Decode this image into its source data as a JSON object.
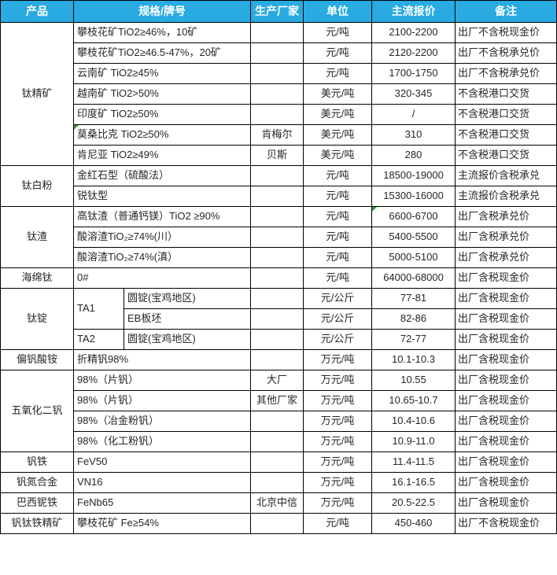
{
  "colors": {
    "header_bg": "#29aae1",
    "header_text": "#ffffff",
    "border": "#000000",
    "body_text": "#262626",
    "marker_green": "#2da02d",
    "row_bg": "#ffffff"
  },
  "chart_data": {
    "type": "table",
    "title": "",
    "columns": [
      "产品",
      "规格/牌号",
      "生产厂家",
      "单位",
      "主流报价",
      "备注"
    ],
    "sections": [
      {
        "product": "钛精矿",
        "rows": [
          {
            "spec": "攀枝花矿TiO2≥46%，10矿",
            "maker": "",
            "unit": "元/吨",
            "price": "2100-2200",
            "note": "出厂不含税现金价"
          },
          {
            "spec": "攀枝花矿TiO2≥46.5-47%，20矿",
            "maker": "",
            "unit": "元/吨",
            "price": "2120-2200",
            "note": "出厂不含税承兑价"
          },
          {
            "spec": "云南矿 TiO2≥45%",
            "maker": "",
            "unit": "元/吨",
            "price": "1700-1750",
            "note": "出厂不含税承兑价"
          },
          {
            "spec": "越南矿 TiO2>50%",
            "maker": "",
            "unit": "美元/吨",
            "price": "320-345",
            "note": "不含税港口交货"
          },
          {
            "spec": "印度矿 TiO2≥50%",
            "maker": "",
            "unit": "美元/吨",
            "price": "/",
            "note": "不含税港口交货"
          },
          {
            "spec": "莫桑比克 TiO2≥50%",
            "maker": "肯梅尔",
            "unit": "美元/吨",
            "price": "310",
            "note": "不含税港口交货",
            "spec_marker": true
          },
          {
            "spec": "肯尼亚 TiO2≥49%",
            "maker": "贝斯",
            "unit": "美元/吨",
            "price": "280",
            "note": "不含税港口交货"
          }
        ]
      },
      {
        "product": "钛白粉",
        "rows": [
          {
            "spec": "金红石型（硫酸法）",
            "maker": "",
            "unit": "元/吨",
            "price": "18500-19000",
            "note": "主流报价含税承兑"
          },
          {
            "spec": "锐钛型",
            "maker": "",
            "unit": "元/吨",
            "price": "15300-16000",
            "note": "主流报价含税承兑"
          }
        ]
      },
      {
        "product": "钛渣",
        "rows": [
          {
            "spec": "高钛渣（普通钙镁）TiO2 ≥90%",
            "maker": "",
            "unit": "元/吨",
            "price": "6600-6700",
            "note": "出厂含税承兑价",
            "price_marker": true
          },
          {
            "spec": "酸溶渣TiO₂≥74%(川）",
            "maker": "",
            "unit": "元/吨",
            "price": "5400-5500",
            "note": "出厂含税承兑价"
          },
          {
            "spec": "酸溶渣TiO₂≥74%(滇）",
            "maker": "",
            "unit": "元/吨",
            "price": "5000-5100",
            "note": "出厂含税承兑价"
          }
        ]
      },
      {
        "product": "海绵钛",
        "rows": [
          {
            "spec": "0#",
            "maker": "",
            "unit": "元/吨",
            "price": "64000-68000",
            "note": "出厂含税现金价"
          }
        ]
      },
      {
        "product": "钛锭",
        "rows": [
          {
            "grade": "TA1",
            "grade_rowspan": 2,
            "spec": "圆锭(宝鸡地区)",
            "maker": "",
            "unit": "元/公斤",
            "price": "77-81",
            "note": "出厂含税现金价"
          },
          {
            "grade_skip": true,
            "spec": "EB板坯",
            "maker": "",
            "unit": "元/公斤",
            "price": "82-86",
            "note": "出厂含税现金价"
          },
          {
            "grade": "TA2",
            "grade_rowspan": 1,
            "spec": "圆锭(宝鸡地区)",
            "maker": "",
            "unit": "元/公斤",
            "price": "72-77",
            "note": "出厂含税现金价"
          }
        ]
      },
      {
        "product": "偏钒酸铵",
        "rows": [
          {
            "spec": "折精钒98%",
            "maker": "",
            "unit": "万元/吨",
            "price": "10.1-10.3",
            "note": "出厂含税现金价"
          }
        ]
      },
      {
        "product": "五氧化二钒",
        "rows": [
          {
            "spec": "98%（片钒）",
            "maker": "大厂",
            "unit": "万元/吨",
            "price": "10.55",
            "note": "出厂含税现金价"
          },
          {
            "spec": "98%（片钒）",
            "maker": "其他厂家",
            "unit": "万元/吨",
            "price": "10.65-10.7",
            "note": "出厂含税现金价"
          },
          {
            "spec": "98%（冶金粉钒）",
            "maker": "",
            "unit": "万元/吨",
            "price": "10.4-10.6",
            "note": "出厂含税现金价"
          },
          {
            "spec": "98%（化工粉钒）",
            "maker": "",
            "unit": "万元/吨",
            "price": "10.9-11.0",
            "note": "出厂含税现金价"
          }
        ]
      },
      {
        "product": "钒铁",
        "rows": [
          {
            "spec": "FeV50",
            "maker": "",
            "unit": "万元/吨",
            "price": "11.4-11.5",
            "note": "出厂含税现金价"
          }
        ]
      },
      {
        "product": "钒氮合金",
        "rows": [
          {
            "spec": "VN16",
            "maker": "",
            "unit": "万元/吨",
            "price": "16.1-16.5",
            "note": "出厂含税现金价"
          }
        ]
      },
      {
        "product": "巴西铌铁",
        "rows": [
          {
            "spec": "FeNb65",
            "maker": "北京中信",
            "unit": "万元/吨",
            "price": "20.5-22.5",
            "note": "出厂含税现金价"
          }
        ]
      },
      {
        "product": "钒钛铁精矿",
        "rows": [
          {
            "spec": "攀枝花矿 Fe≥54%",
            "maker": "",
            "unit": "元/吨",
            "price": "450-460",
            "note": "出厂不含税现金价"
          }
        ]
      }
    ]
  }
}
